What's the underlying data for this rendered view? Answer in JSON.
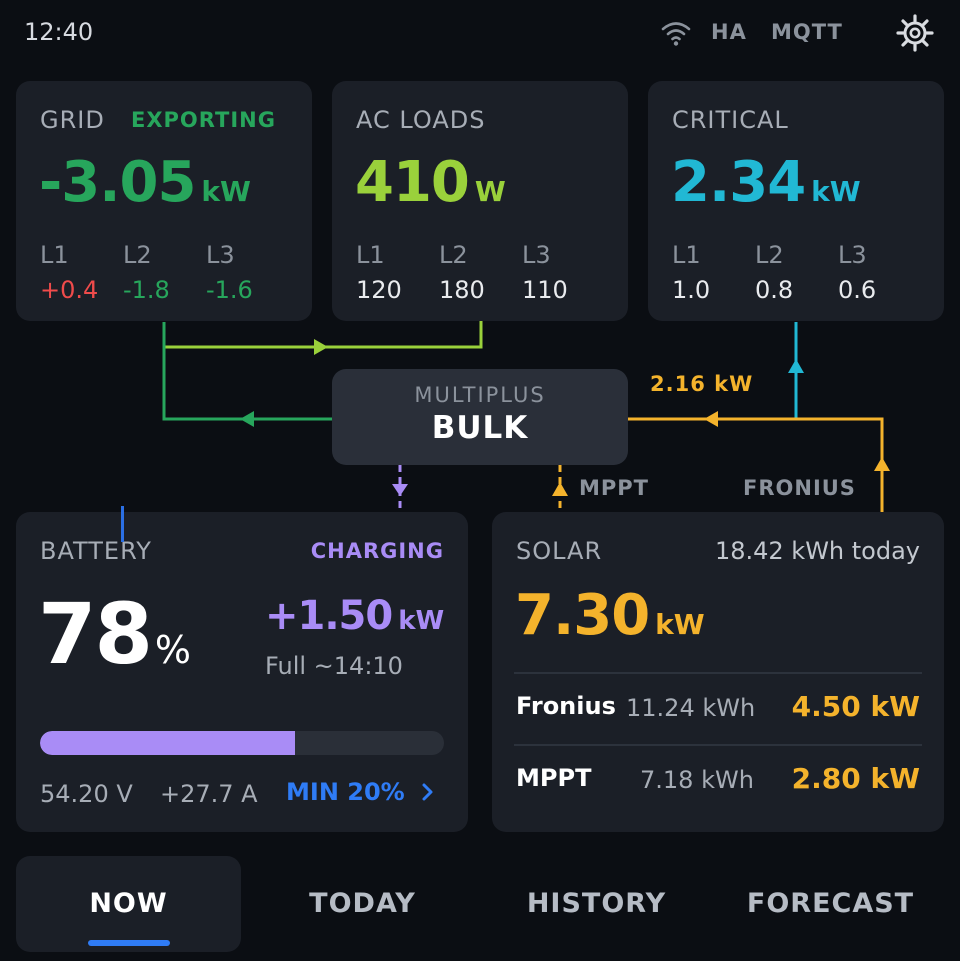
{
  "status": {
    "time": "12:40",
    "ha": "HA",
    "mqtt": "MQTT",
    "wifi_icon": "wifi-icon",
    "settings_icon": "gear-icon"
  },
  "grid": {
    "title": "GRID",
    "state": "EXPORTING",
    "value": "-3.05",
    "unit": "kW",
    "phase_labels": [
      "L1",
      "L2",
      "L3"
    ],
    "phase_values": [
      "+0.4",
      "-1.8",
      "-1.6"
    ]
  },
  "ac_loads": {
    "title": "AC LOADS",
    "value": "410",
    "unit": "W",
    "phase_labels": [
      "L1",
      "L2",
      "L3"
    ],
    "phase_values": [
      "120",
      "180",
      "110"
    ]
  },
  "critical": {
    "title": "CRITICAL",
    "value": "2.34",
    "unit": "kW",
    "phase_labels": [
      "L1",
      "L2",
      "L3"
    ],
    "phase_values": [
      "1.0",
      "0.8",
      "0.6"
    ]
  },
  "multiplus": {
    "label": "MULTIPLUS",
    "state": "BULK"
  },
  "flows": {
    "solar_to_multiplus": "2.16 kW",
    "mppt_label": "MPPT",
    "fronius_label": "FRONIUS"
  },
  "battery": {
    "title": "BATTERY",
    "state": "CHARGING",
    "soc": "78",
    "soc_unit": "%",
    "soc_fraction": 0.78,
    "min_fraction": 0.2,
    "power": "+1.50",
    "power_unit": "kW",
    "eta": "Full ~14:10",
    "voltage": "54.20 V",
    "current": "+27.7 A",
    "min_label": "MIN 20%",
    "chevron_icon": "chevron-right-icon"
  },
  "solar": {
    "title": "SOLAR",
    "today": "18.42 kWh today",
    "value": "7.30",
    "unit": "kW",
    "sources": [
      {
        "name": "Fronius",
        "energy": "11.24 kWh",
        "power": "4.50 kW"
      },
      {
        "name": "MPPT",
        "energy": "7.18 kWh",
        "power": "2.80 kW"
      }
    ]
  },
  "nav": {
    "tabs": [
      "NOW",
      "TODAY",
      "HISTORY",
      "FORECAST"
    ],
    "active": "NOW"
  },
  "colors": {
    "grid": "#27a65c",
    "ac_loads": "#9ad13b",
    "critical": "#21b8d4",
    "battery": "#a98cf6",
    "solar": "#f4b32c",
    "accent": "#2f7cf6",
    "negative": "#ef4b4b"
  }
}
